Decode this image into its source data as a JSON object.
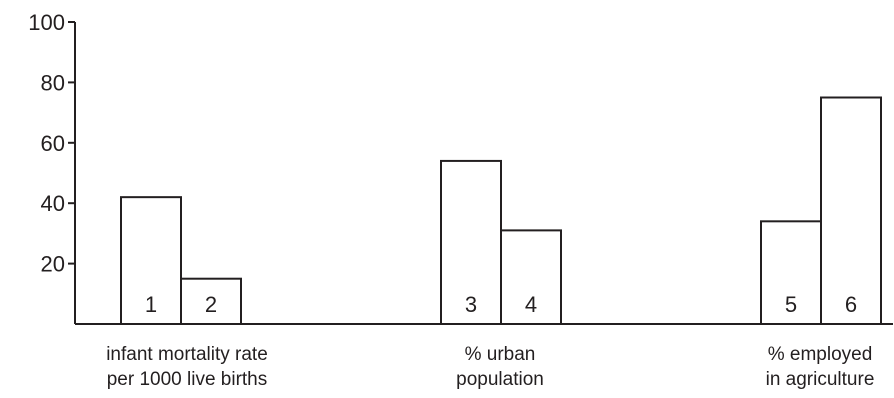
{
  "chart_data": {
    "type": "bar",
    "title": "",
    "xlabel": "",
    "ylabel": "",
    "ylim": [
      0,
      100
    ],
    "yticks": [
      20,
      40,
      60,
      80,
      100
    ],
    "grid": false,
    "legend": "none",
    "bar_fill": "#ffffff",
    "bar_stroke": "#231f20",
    "groups": [
      {
        "label_lines": [
          "infant mortality rate",
          "per 1000 live births"
        ],
        "bars": [
          {
            "label": "1",
            "value": 42
          },
          {
            "label": "2",
            "value": 15
          }
        ]
      },
      {
        "label_lines": [
          "% urban",
          "population"
        ],
        "bars": [
          {
            "label": "3",
            "value": 54
          },
          {
            "label": "4",
            "value": 31
          }
        ]
      },
      {
        "label_lines": [
          "% employed",
          "in agriculture"
        ],
        "bars": [
          {
            "label": "5",
            "value": 34
          },
          {
            "label": "6",
            "value": 75
          }
        ]
      }
    ]
  }
}
